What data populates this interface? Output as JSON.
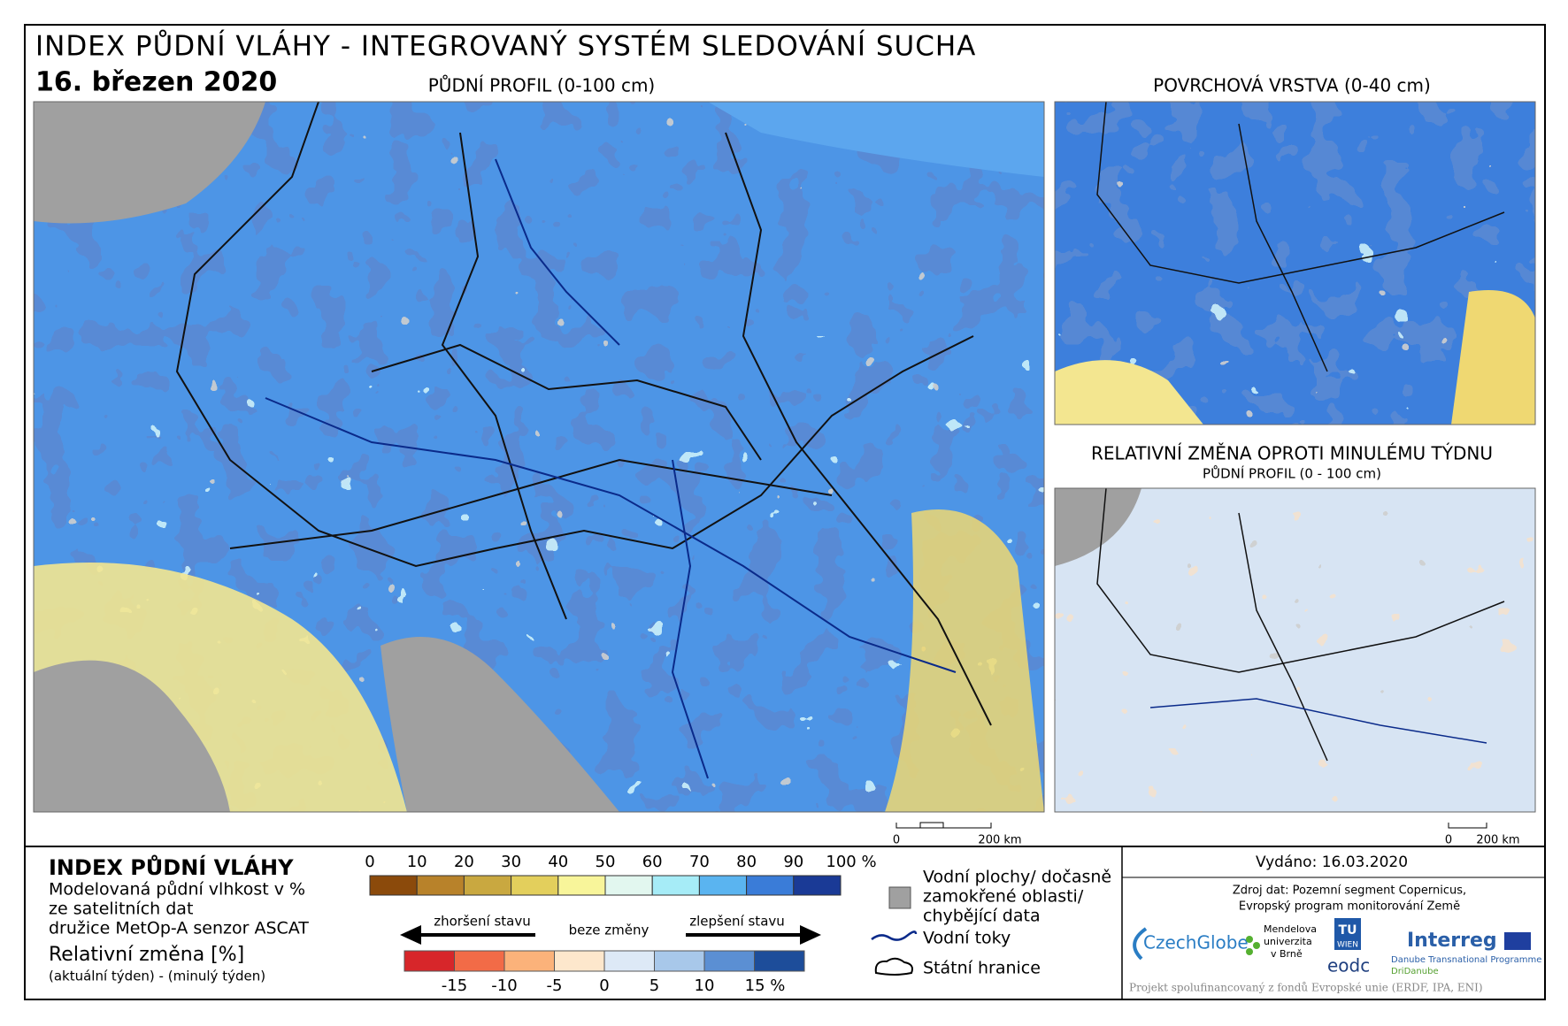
{
  "header": {
    "title": "INDEX PŮDNÍ VLÁHY - INTEGROVANÝ SYSTÉM SLEDOVÁNÍ SUCHA",
    "date": "16. březen 2020",
    "main_map_title": "PŮDNÍ PROFIL (0-100 cm)",
    "surface_map_title": "POVRCHOVÁ VRSTVA (0-40 cm)",
    "change_title": "RELATIVNÍ ZMĚNA OPROTI MINULÉMU TÝDNU",
    "change_subtitle": "PŮDNÍ PROFIL (0 - 100 cm)"
  },
  "scale_bar": {
    "start": "0",
    "end": "200 km"
  },
  "legend": {
    "title": "INDEX PŮDNÍ VLÁHY",
    "lines": [
      "Modelovaná půdní vlhkost v %",
      "ze satelitních dat",
      "družice MetOp-A senzor ASCAT"
    ],
    "change_title": "Relativní změna [%]",
    "change_subtitle": "(aktuální týden) - (minulý týden)",
    "moisture_ticks": [
      "0",
      "10",
      "20",
      "30",
      "40",
      "50",
      "60",
      "70",
      "80",
      "90",
      "100 %"
    ],
    "moisture_colors": [
      "#8b4a0b",
      "#b8822a",
      "#c9a840",
      "#e3cf5c",
      "#f8f59a",
      "#e2f7ef",
      "#a6ecf7",
      "#5ab4f0",
      "#3a7cd8",
      "#1a3a96"
    ],
    "arrow_worse": "zhoršení stavu",
    "arrow_none": "beze změny",
    "arrow_better": "zlepšení stavu",
    "change_ticks": [
      "-15",
      "-10",
      "-5",
      "0",
      "5",
      "10",
      "15 %"
    ],
    "change_colors": [
      "#d7262a",
      "#f26b47",
      "#fbb27a",
      "#fde7cc",
      "#dde9f6",
      "#a8c8ea",
      "#5b8fd3",
      "#1d4d9a"
    ],
    "water": [
      "Vodní plochy/ dočasně",
      "zamokřené oblasti/",
      "chybějící data"
    ],
    "rivers": "Vodní toky",
    "borders": "Státní hranice"
  },
  "credits": {
    "issued": "Vydáno: 16.03.2020",
    "source": [
      "Zdroj dat: Pozemní segment Copernicus,",
      "Evropský program monitorování Země"
    ],
    "czechglobe": "CzechGlobe",
    "mendel": [
      "Mendelova",
      "univerzita",
      "v Brně"
    ],
    "tu": "TU",
    "wien": "WIEN",
    "eodc": "eodc",
    "interreg": "Interreg",
    "danube": "Danube Transnational Programme",
    "dridanube": "DriDanube",
    "footer": "Projekt spolufinancovaný z fondů Evropské unie (ERDF, IPA, ENI)"
  }
}
